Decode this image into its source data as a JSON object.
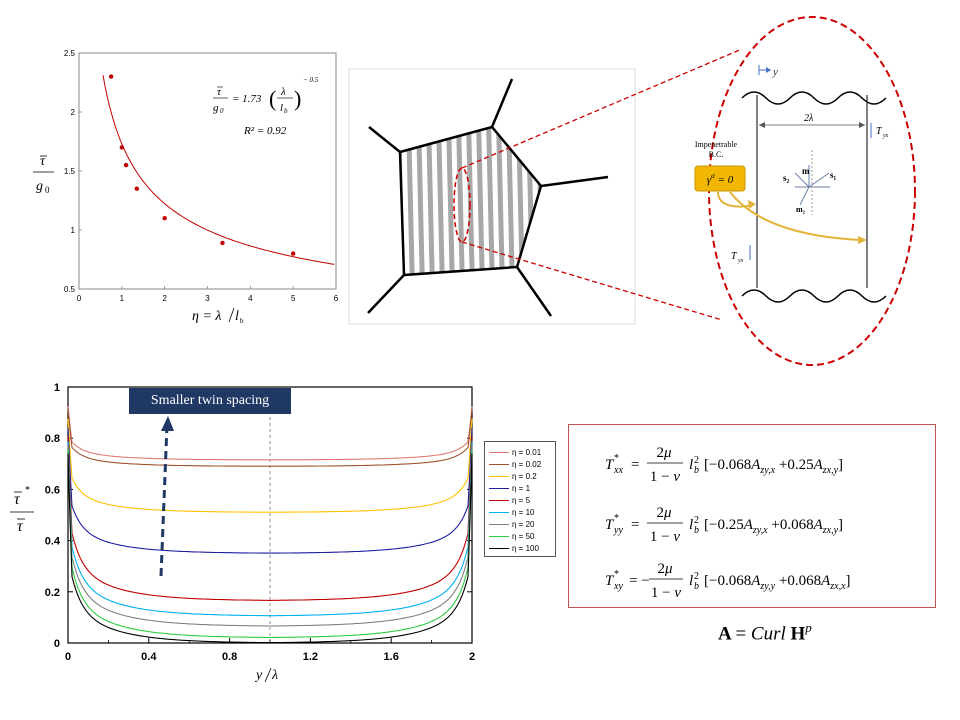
{
  "chart_data": [
    {
      "type": "scatter",
      "xlabel": "η = λ/l_b",
      "ylabel": "τ̄ / g₀",
      "xlim": [
        0,
        6
      ],
      "ylim": [
        0.5,
        2.5
      ],
      "x_ticks": [
        "0",
        "1",
        "2",
        "3",
        "4",
        "5",
        "6"
      ],
      "y_ticks": [
        "0.5",
        "1",
        "1.5",
        "2",
        "2.5"
      ],
      "points": [
        {
          "x": 0.75,
          "y": 2.3
        },
        {
          "x": 1.0,
          "y": 1.7
        },
        {
          "x": 1.1,
          "y": 1.55
        },
        {
          "x": 1.35,
          "y": 1.35
        },
        {
          "x": 2.0,
          "y": 1.1
        },
        {
          "x": 3.35,
          "y": 0.89
        },
        {
          "x": 5.0,
          "y": 0.8
        }
      ],
      "fit": {
        "coefficient": 1.73,
        "exponent": -0.5
      },
      "annotations": {
        "fit_equation": "τ̄/g₀ = 1.73 (λ/l_b)^-0.5",
        "r_squared": "R² = 0.92"
      },
      "colors": {
        "points": "#c00000",
        "fit": "#c00000"
      }
    },
    {
      "type": "line",
      "xlabel": "y/λ",
      "ylabel": "τ̄* / τ̄",
      "xlim": [
        0,
        2
      ],
      "ylim": [
        0,
        1
      ],
      "x_ticks": [
        "0",
        "0.4",
        "0.8",
        "1.2",
        "1.6",
        "2"
      ],
      "y_ticks": [
        "0",
        "0.2",
        "0.4",
        "0.6",
        "0.8",
        "1"
      ],
      "series": [
        {
          "name": "η = 0.01",
          "color": "#e07a6e",
          "mid": 0.715,
          "edge": 0.81
        },
        {
          "name": "η = 0.02",
          "color": "#a0522d",
          "mid": 0.69,
          "edge": 0.79
        },
        {
          "name": "η = 0.2",
          "color": "#ffc000",
          "mid": 0.51,
          "edge": 0.69
        },
        {
          "name": "η = 1",
          "color": "#1f1f9f",
          "mid": 0.35,
          "edge": 0.6
        },
        {
          "name": "η = 5",
          "color": "#c00000",
          "mid": 0.165,
          "edge": 0.52
        },
        {
          "name": "η = 10",
          "color": "#00b0f0",
          "mid": 0.105,
          "edge": 0.47
        },
        {
          "name": "η = 20",
          "color": "#808080",
          "mid": 0.065,
          "edge": 0.43
        },
        {
          "name": "η = 50",
          "color": "#2ecc40",
          "mid": 0.02,
          "edge": 0.39
        },
        {
          "name": "η = 100",
          "color": "#000000",
          "mid": 0.0,
          "edge": 0.35
        }
      ],
      "callout": "Smaller twin spacing",
      "dashed_center_x": 1.0
    }
  ],
  "diagram": {
    "labels": {
      "y_axis": "y",
      "width": "2λ",
      "traction_top": "T_yx",
      "traction_bottom": "T_yx",
      "impenetrable": "Impenetrable\nB.C.",
      "bc_value": "γ^α = 0",
      "vector_s2": "s₂",
      "vector_s1": "s₁",
      "vector_m": "m",
      "vector_m2": "m₂"
    },
    "colors": {
      "dashed_ellipse": "#cc0000",
      "arrow": "#e3b43a",
      "bc_box": "#f2b705"
    }
  },
  "equations": {
    "txx": "T*xx = 2μ/(1−ν) l²b [−0.068A zy,x + 0.25A zx,y]",
    "tyy": "T*yy = 2μ/(1−ν) l²b [−0.25A zy,x + 0.068A zx,y]",
    "txy": "T*xy = −2μ/(1−ν) l²b [−0.068A zy,y + 0.068A zx,x]",
    "curl": "A = Curl H^p"
  }
}
